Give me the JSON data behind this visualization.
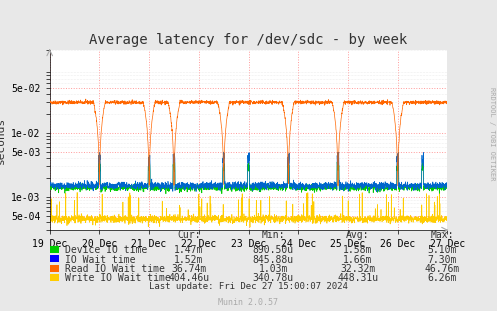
{
  "title": "Average latency for /dev/sdc - by week",
  "ylabel": "seconds",
  "background_color": "#e8e8e8",
  "plot_bg_color": "#ffffff",
  "grid_color": "#cccccc",
  "x_labels": [
    "19 Dec",
    "20 Dec",
    "21 Dec",
    "22 Dec",
    "23 Dec",
    "24 Dec",
    "25 Dec",
    "26 Dec",
    "27 Dec"
  ],
  "ylim_log_min": 0.0003,
  "ylim_log_max": 0.2,
  "colors": {
    "device_io": "#00cc00",
    "io_wait": "#0000ff",
    "read_io_wait": "#ff6600",
    "write_io_wait": "#ffcc00"
  },
  "legend": [
    {
      "label": "Device IO time",
      "color": "#00cc00",
      "cur": "1.47m",
      "min": "890.50u",
      "avg": "1.58m",
      "max": "5.10m"
    },
    {
      "label": "IO Wait time",
      "color": "#0000ff",
      "cur": "1.52m",
      "min": "845.88u",
      "avg": "1.66m",
      "max": "7.30m"
    },
    {
      "label": "Read IO Wait time",
      "color": "#ff6600",
      "cur": "36.74m",
      "min": "1.03m",
      "avg": "32.32m",
      "max": "46.76m"
    },
    {
      "label": "Write IO Wait time",
      "color": "#ffcc00",
      "cur": "404.46u",
      "min": "340.78u",
      "avg": "448.31u",
      "max": "6.26m"
    }
  ],
  "footer": "Last update: Fri Dec 27 15:00:07 2024",
  "munin_version": "Munin 2.0.57",
  "rrdtool_label": "RRDTOOL / TOBI OETIKER"
}
